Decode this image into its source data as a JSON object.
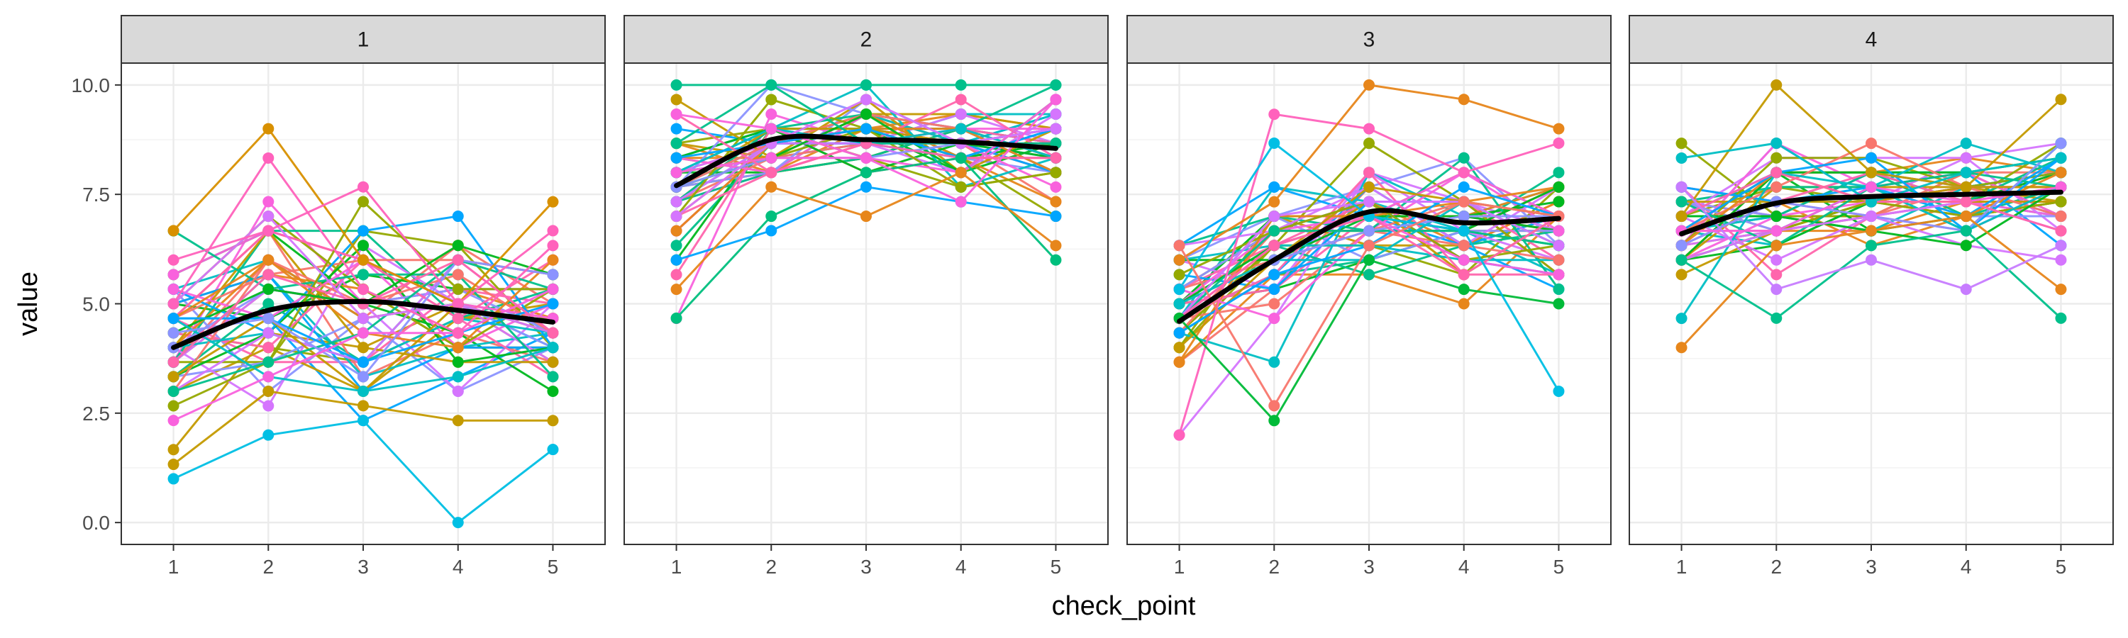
{
  "chart_data": {
    "type": "line",
    "layout": "facet_wrap",
    "facets": [
      "1",
      "2",
      "3",
      "4"
    ],
    "xlabel": "check_point",
    "ylabel": "value",
    "x": [
      1,
      2,
      3,
      4,
      5
    ],
    "x_ticks": [
      "1",
      "2",
      "3",
      "4",
      "5"
    ],
    "y_ticks": [
      "0.0",
      "2.5",
      "5.0",
      "7.5",
      "10.0"
    ],
    "ylim": [
      -0.5,
      10.5
    ],
    "xlim": [
      0.45,
      5.55
    ],
    "grid": true,
    "legend": "none",
    "series_count_per_facet": 48,
    "palette": [
      "#F8766D",
      "#E7861B",
      "#C49A00",
      "#95A900",
      "#00B81F",
      "#00C08B",
      "#00BFC4",
      "#00A5FF",
      "#8B93FF",
      "#D575FE",
      "#F962DD",
      "#FF65AC"
    ],
    "smooth_color": "#000000",
    "facet_data": [
      {
        "facet": "1",
        "mean": [
          4.0,
          4.95,
          5.05,
          4.8,
          4.55
        ],
        "spread": [
          1.45,
          1.5,
          1.45,
          1.4,
          1.1
        ],
        "smooth": [
          4.0,
          4.85,
          5.05,
          4.85,
          4.58
        ],
        "extremes": [
          {
            "values": [
              1.0,
              2.0,
              2.33,
              0.0,
              1.67
            ],
            "color": "#00BFE4"
          },
          {
            "values": [
              6.67,
              9.0,
              6.0,
              5.0,
              7.33
            ],
            "color": "#D89000"
          },
          {
            "values": [
              5.0,
              8.33,
              5.33,
              4.33,
              6.33
            ],
            "color": "#FF62BC"
          },
          {
            "values": [
              6.0,
              6.67,
              7.67,
              5.0,
              6.67
            ],
            "color": "#FF62BC"
          },
          {
            "values": [
              1.33,
              3.0,
              2.67,
              2.33,
              2.33
            ],
            "color": "#C49A00"
          }
        ]
      },
      {
        "facet": "2",
        "mean": [
          7.7,
          8.65,
          8.75,
          8.7,
          8.55
        ],
        "spread": [
          1.2,
          0.7,
          0.6,
          0.6,
          0.8
        ],
        "smooth": [
          7.7,
          8.75,
          8.75,
          8.7,
          8.55
        ],
        "extremes": [
          {
            "values": [
              10.0,
              10.0,
              10.0,
              10.0,
              10.0
            ],
            "color": "#00C08B"
          },
          {
            "values": [
              4.67,
              7.0,
              8.0,
              8.33,
              6.0
            ],
            "color": "#00BF7D"
          },
          {
            "values": [
              6.0,
              6.67,
              7.67,
              7.33,
              7.0
            ],
            "color": "#00A5FF"
          },
          {
            "values": [
              5.33,
              7.67,
              7.0,
              8.0,
              6.33
            ],
            "color": "#E7861B"
          },
          {
            "values": [
              9.33,
              9.0,
              8.33,
              7.33,
              9.67
            ],
            "color": "#F962DD"
          }
        ]
      },
      {
        "facet": "3",
        "mean": [
          4.7,
          6.15,
          7.05,
          6.85,
          6.9
        ],
        "spread": [
          1.05,
          1.2,
          0.85,
          0.85,
          0.9
        ],
        "smooth": [
          4.6,
          6.0,
          7.1,
          6.85,
          6.95
        ],
        "extremes": [
          {
            "values": [
              2.0,
              9.33,
              9.0,
              8.0,
              8.67
            ],
            "color": "#FF62BC"
          },
          {
            "values": [
              4.67,
              2.33,
              6.0,
              5.33,
              5.0
            ],
            "color": "#00BA38"
          },
          {
            "values": [
              6.0,
              7.33,
              10.0,
              9.67,
              9.0
            ],
            "color": "#E7861B"
          },
          {
            "values": [
              5.33,
              8.67,
              7.0,
              6.67,
              3.0
            ],
            "color": "#00BFE4"
          },
          {
            "values": [
              6.33,
              2.67,
              6.33,
              7.33,
              7.0
            ],
            "color": "#F8766D"
          }
        ]
      },
      {
        "facet": "4",
        "mean": [
          6.6,
          7.35,
          7.4,
          7.45,
          7.55
        ],
        "spread": [
          0.9,
          0.85,
          0.75,
          0.75,
          0.9
        ],
        "smooth": [
          6.6,
          7.3,
          7.45,
          7.5,
          7.55
        ],
        "extremes": [
          {
            "values": [
              4.0,
              6.33,
              6.67,
              7.0,
              5.33
            ],
            "color": "#E7861B"
          },
          {
            "values": [
              7.0,
              10.0,
              8.0,
              7.67,
              9.67
            ],
            "color": "#C49A00"
          },
          {
            "values": [
              8.33,
              8.67,
              7.33,
              8.0,
              8.33
            ],
            "color": "#00BFC4"
          },
          {
            "values": [
              6.0,
              4.67,
              6.33,
              6.67,
              4.67
            ],
            "color": "#00C08B"
          },
          {
            "values": [
              7.67,
              5.33,
              6.0,
              5.33,
              6.33
            ],
            "color": "#C77CFF"
          }
        ]
      }
    ]
  }
}
